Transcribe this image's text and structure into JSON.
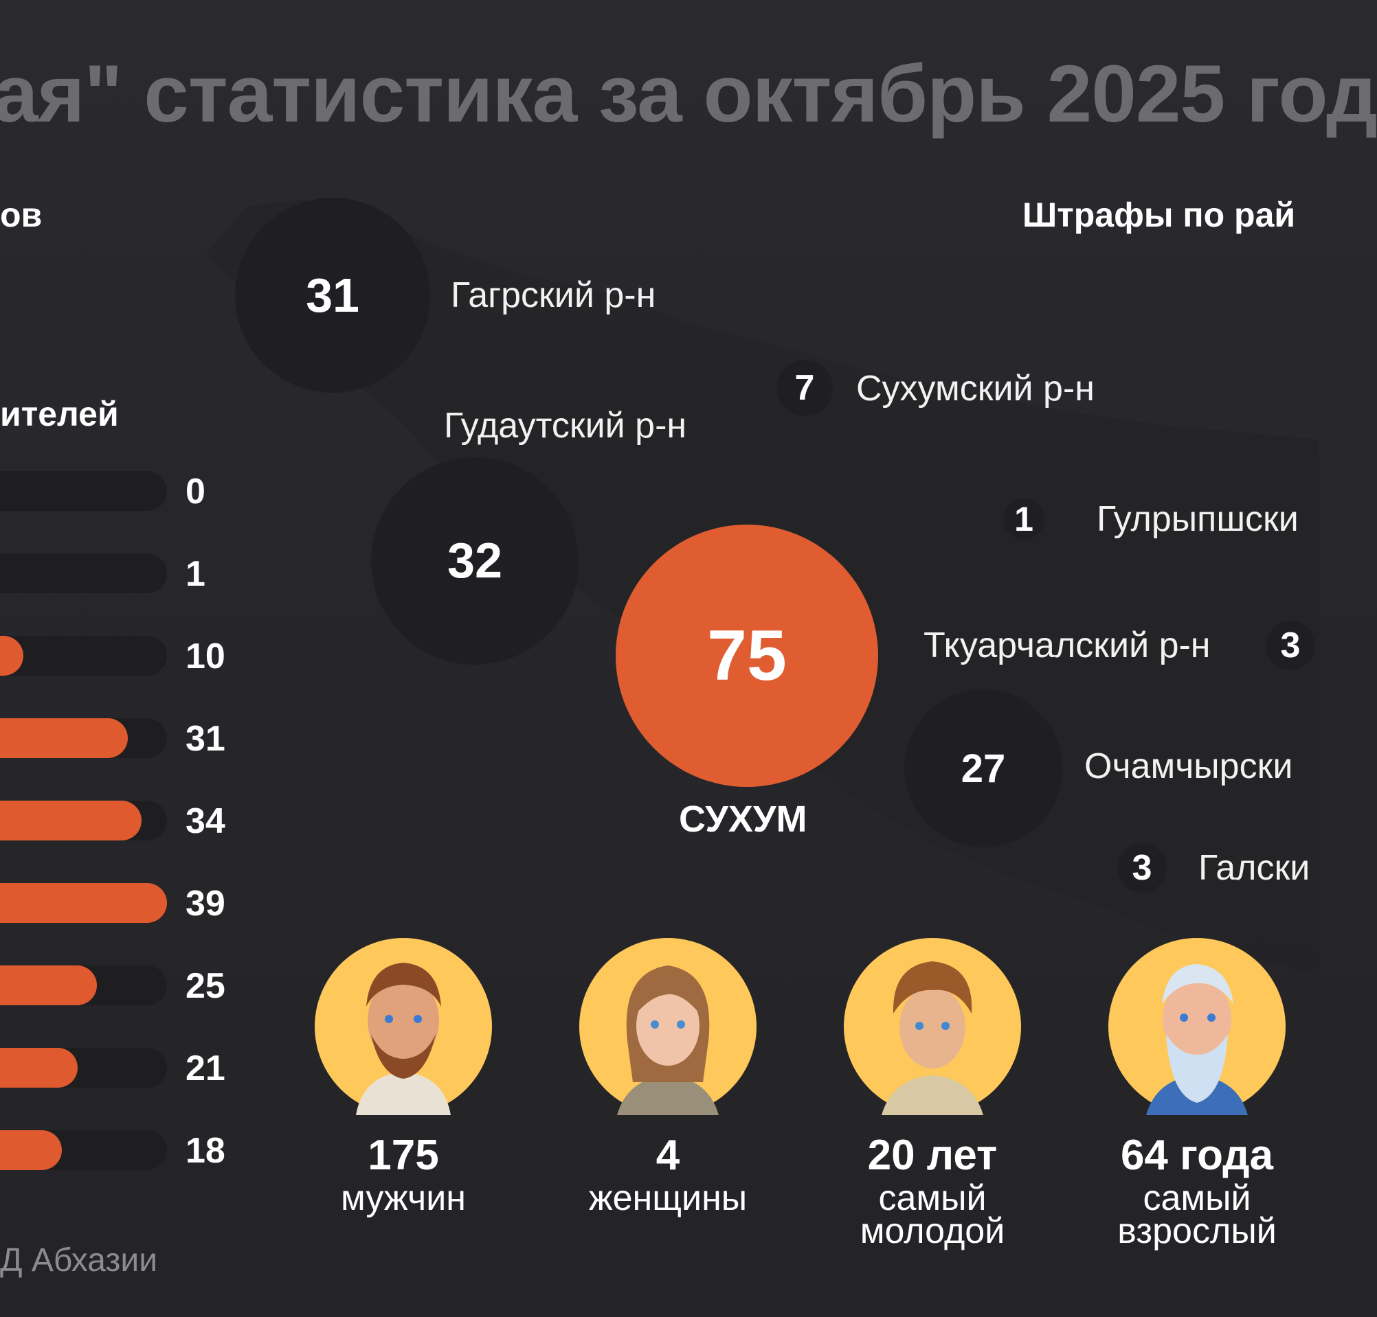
{
  "title": "ая\" статистика за октябрь 2025 год",
  "left_section": {
    "title_top": "ов",
    "title_bottom": "ителей"
  },
  "bars": [
    {
      "value": "0",
      "fill": 0
    },
    {
      "value": "1",
      "fill": 0.03
    },
    {
      "value": "10",
      "fill": 0.26
    },
    {
      "value": "31",
      "fill": 0.8
    },
    {
      "value": "34",
      "fill": 0.87
    },
    {
      "value": "39",
      "fill": 1.0
    },
    {
      "value": "25",
      "fill": 0.64
    },
    {
      "value": "21",
      "fill": 0.54
    },
    {
      "value": "18",
      "fill": 0.46
    }
  ],
  "right_section_title": "Штрафы по рай",
  "districts": {
    "gagra": {
      "value": "31",
      "label": "Гагрский р-н"
    },
    "gudauta": {
      "value": "32",
      "label": "Гудаутский р-н"
    },
    "sukhum_district": {
      "value": "7",
      "label": "Сухумский р-н"
    },
    "gulripsh": {
      "value": "1",
      "label": "Гулрыпшски"
    },
    "sukhum_city": {
      "value": "75",
      "label": "СУХУМ"
    },
    "tkuarchal": {
      "value": "3",
      "label": "Ткуарчалский р-н"
    },
    "ochamchira": {
      "value": "27",
      "label": "Очамчырски"
    },
    "gal": {
      "value": "3",
      "label": "Галски"
    }
  },
  "demographics": [
    {
      "number": "175",
      "label": "мужчин",
      "icon": "man-avatar"
    },
    {
      "number": "4",
      "label": "женщины",
      "icon": "woman-avatar"
    },
    {
      "number": "20 лет",
      "label": "самый молодой",
      "icon": "young-man-avatar"
    },
    {
      "number": "64 года",
      "label": "самый взрослый",
      "icon": "old-man-avatar"
    }
  ],
  "source": "Д Абхазии",
  "colors": {
    "accent": "#e05d31",
    "background": "#27272b",
    "circle": "#1f1f23",
    "avatar_bg": "#ffc85a"
  }
}
